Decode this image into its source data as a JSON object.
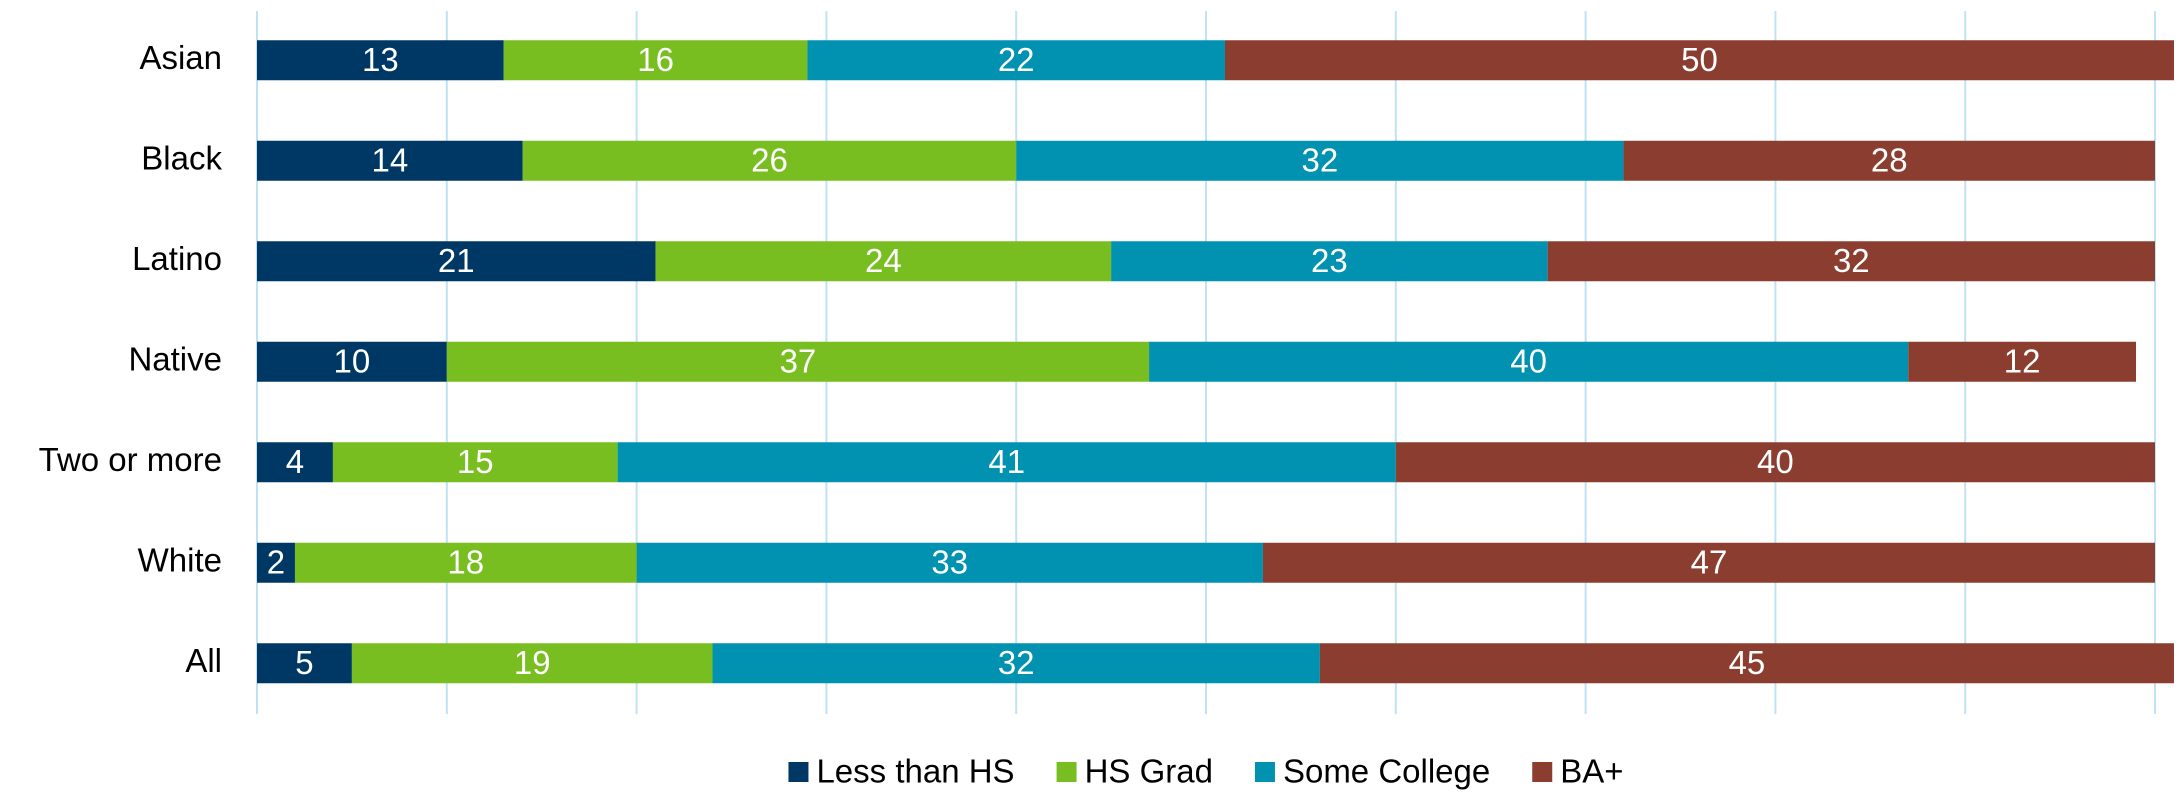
{
  "chart_data": {
    "type": "stacked_barh",
    "categories": [
      "Asian",
      "Black",
      "Latino",
      "Native",
      "Two or more",
      "White",
      "All"
    ],
    "series": [
      {
        "name": "Less than HS",
        "color": "#003865",
        "values": [
          13,
          14,
          21,
          10,
          4,
          2,
          5
        ]
      },
      {
        "name": "HS Grad",
        "color": "#78be20",
        "values": [
          16,
          26,
          24,
          37,
          15,
          18,
          19
        ]
      },
      {
        "name": "Some College",
        "color": "#0092b0",
        "values": [
          22,
          32,
          23,
          40,
          41,
          33,
          32
        ]
      },
      {
        "name": "BA+",
        "color": "#8b3e2f",
        "values": [
          50,
          28,
          32,
          12,
          40,
          47,
          45
        ]
      }
    ],
    "xlim": [
      0,
      100
    ],
    "xticks": [
      0,
      10,
      20,
      30,
      40,
      50,
      60,
      70,
      80,
      90,
      100
    ],
    "grid": true,
    "legend": "bottom"
  }
}
